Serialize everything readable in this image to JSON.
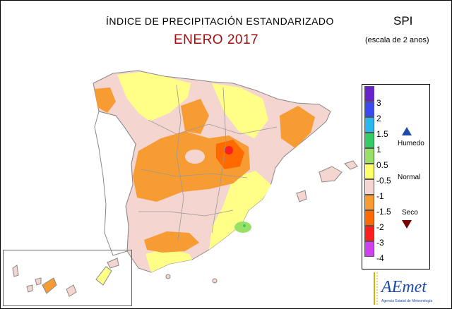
{
  "header": {
    "title": "ÍNDICE DE PRECIPITACIÓN ESTANDARIZADO",
    "subtitle": "ENERO 2017",
    "index_label": "SPI",
    "scale_note": "(escala de 2 anos)"
  },
  "legend": {
    "ticks": [
      "3",
      "2",
      "1.5",
      "1",
      "0.5",
      "-0.5",
      "-1",
      "-1.5",
      "-2",
      "-3",
      "-4"
    ],
    "colors": [
      "#6a22cc",
      "#3a4af0",
      "#2ab7ee",
      "#33cc66",
      "#99e066",
      "#ffff66",
      "#f5d5cf",
      "#f79b33",
      "#ff6a00",
      "#ff1e1e",
      "#d040ee"
    ],
    "humid_label": "Humedo",
    "normal_label": "Normal",
    "dry_label": "Seco",
    "humid_arrow_color": "#1e4aa8",
    "dry_arrow_color": "#7a0000"
  },
  "logo": {
    "brand": "AEmet",
    "tagline": "Agencia Estatal de Meteorología"
  }
}
